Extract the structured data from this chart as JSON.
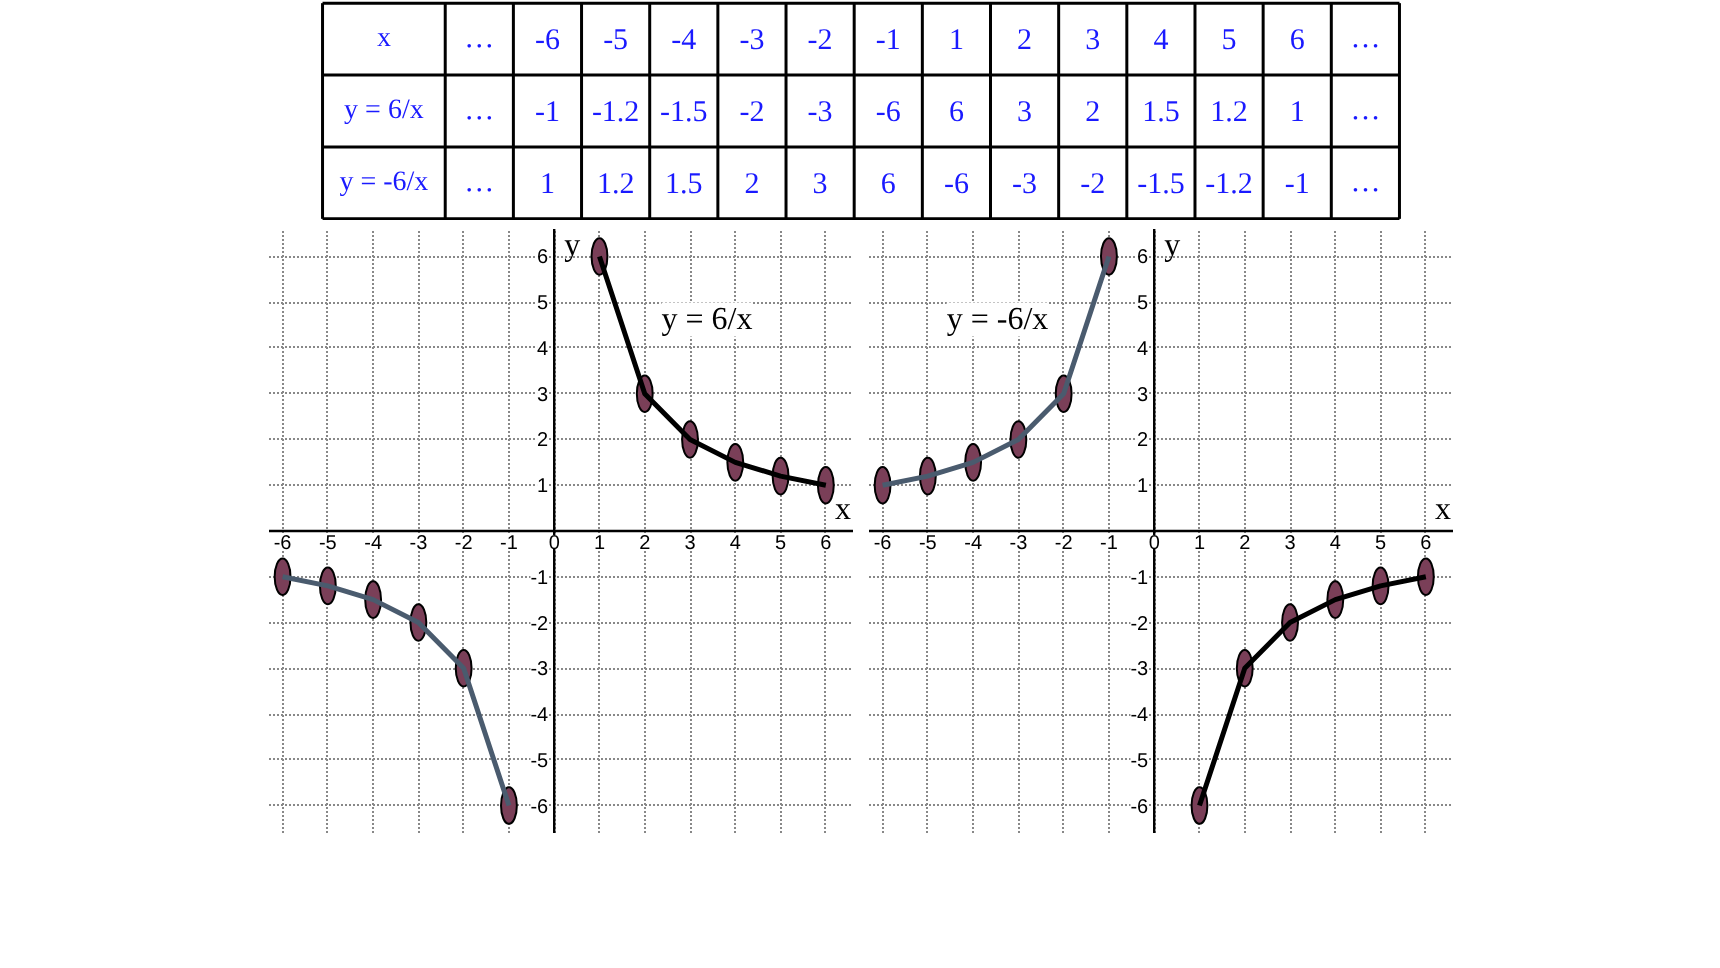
{
  "chart_data": [
    {
      "type": "other",
      "y_categories": [
        "x",
        "y = 6/x",
        "y = -6/x"
      ],
      "cell_labels": [
        [
          "…",
          "-6",
          "-5",
          "-4",
          "-3",
          "-2",
          "-1",
          "1",
          "2",
          "3",
          "4",
          "5",
          "6",
          "…"
        ],
        [
          "…",
          "-1",
          "-1.2",
          "-1.5",
          "-2",
          "-3",
          "-6",
          "6",
          "3",
          "2",
          "1.5",
          "1.2",
          "1",
          "…"
        ],
        [
          "…",
          "1",
          "1.2",
          "1.5",
          "2",
          "3",
          "6",
          "-6",
          "-3",
          "-2",
          "-1.5",
          "-1.2",
          "-1",
          "…"
        ]
      ]
    },
    {
      "type": "line",
      "xlabel": "x",
      "ylabel": "y",
      "xlim": [
        -6.3,
        6.6
      ],
      "ylim": [
        -6.6,
        6.6
      ],
      "xticks": [
        -6,
        -5,
        -4,
        -3,
        -2,
        -1,
        0,
        1,
        2,
        3,
        4,
        5,
        6
      ],
      "yticks": [
        -6,
        -5,
        -4,
        -3,
        -2,
        -1,
        1,
        2,
        3,
        4,
        5,
        6
      ],
      "grid": true,
      "annotations": [
        "y = 6/x"
      ],
      "series": [
        {
          "type": "line",
          "color": "#4a5b6e",
          "x": [
            -6,
            -5,
            -4,
            -3,
            -2,
            -1
          ],
          "values": [
            -1,
            -1.2,
            -1.5,
            -2,
            -3,
            -6
          ]
        },
        {
          "type": "line",
          "color": "#000000",
          "x": [
            1,
            2,
            3,
            4,
            5,
            6
          ],
          "values": [
            6,
            3,
            2,
            1.5,
            1.2,
            1
          ]
        },
        {
          "type": "scatter",
          "color": "#7a3f58",
          "marker": "circle",
          "x": [
            -6,
            -5,
            -4,
            -3,
            -2,
            -1,
            1,
            2,
            3,
            4,
            5,
            6
          ],
          "values": [
            -1,
            -1.2,
            -1.5,
            -2,
            -3,
            -6,
            6,
            3,
            2,
            1.5,
            1.2,
            1
          ]
        }
      ]
    },
    {
      "type": "line",
      "xlabel": "x",
      "ylabel": "y",
      "xlim": [
        -6.3,
        6.6
      ],
      "ylim": [
        -6.6,
        6.6
      ],
      "xticks": [
        -6,
        -5,
        -4,
        -3,
        -2,
        -1,
        0,
        1,
        2,
        3,
        4,
        5,
        6
      ],
      "yticks": [
        -6,
        -5,
        -4,
        -3,
        -2,
        -1,
        1,
        2,
        3,
        4,
        5,
        6
      ],
      "grid": true,
      "annotations": [
        "y = -6/x"
      ],
      "series": [
        {
          "type": "line",
          "color": "#4a5b6e",
          "x": [
            -6,
            -5,
            -4,
            -3,
            -2,
            -1
          ],
          "values": [
            1,
            1.2,
            1.5,
            2,
            3,
            6
          ]
        },
        {
          "type": "line",
          "color": "#000000",
          "x": [
            1,
            2,
            3,
            4,
            5,
            6
          ],
          "values": [
            -6,
            -3,
            -2,
            -1.5,
            -1.2,
            -1
          ]
        },
        {
          "type": "scatter",
          "color": "#7a3f58",
          "marker": "circle",
          "x": [
            -6,
            -5,
            -4,
            -3,
            -2,
            -1,
            1,
            2,
            3,
            4,
            5,
            6
          ],
          "values": [
            1,
            1.2,
            1.5,
            2,
            3,
            6,
            -6,
            -3,
            -2,
            -1.5,
            -1.2,
            -1
          ]
        }
      ]
    }
  ]
}
